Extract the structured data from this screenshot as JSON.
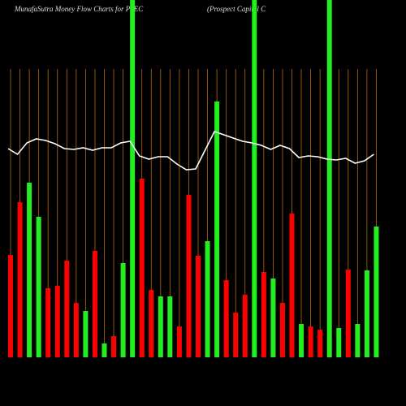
{
  "chart_data": {
    "type": "money-flow",
    "title": "MunafaSutra  Money Flow  Charts for PSEC",
    "subtitle": "(Prospect Capital C",
    "ylim": [
      0,
      440
    ],
    "grid": true,
    "grid_color": "#b8690f",
    "series": [
      {
        "type": "bar",
        "values": [
          126,
          191,
          215,
          173,
          85,
          88,
          119,
          67,
          57,
          131,
          17,
          26,
          116,
          460,
          220,
          83,
          75,
          75,
          38,
          200,
          125,
          143,
          315,
          95,
          55,
          77,
          460,
          105,
          97,
          67,
          177,
          41,
          38,
          34,
          460,
          36,
          108,
          41,
          107,
          161
        ],
        "colors": [
          "#ff0000",
          "#ff0000",
          "#22ee22",
          "#22ee22",
          "#ff0000",
          "#ff0000",
          "#ff0000",
          "#ff0000",
          "#22ee22",
          "#ff0000",
          "#22ee22",
          "#ff0000",
          "#22ee22",
          "#22ee22",
          "#ff0000",
          "#ff0000",
          "#22ee22",
          "#22ee22",
          "#ff0000",
          "#ff0000",
          "#ff0000",
          "#22ee22",
          "#22ee22",
          "#ff0000",
          "#ff0000",
          "#ff0000",
          "#22ee22",
          "#ff0000",
          "#22ee22",
          "#ff0000",
          "#ff0000",
          "#22ee22",
          "#ff0000",
          "#ff0000",
          "#22ee22",
          "#22ee22",
          "#ff0000",
          "#22ee22",
          "#22ee22",
          "#22ee22"
        ]
      },
      {
        "type": "line",
        "color": "#ffffff",
        "values": [
          257,
          250,
          264,
          269,
          267,
          263,
          257,
          256,
          258,
          255,
          258,
          258,
          264,
          266,
          248,
          244,
          247,
          247,
          238,
          231,
          232,
          255,
          278,
          274,
          270,
          266,
          264,
          261,
          256,
          261,
          257,
          246,
          248,
          247,
          244,
          243,
          245,
          239,
          242,
          250
        ]
      }
    ]
  }
}
